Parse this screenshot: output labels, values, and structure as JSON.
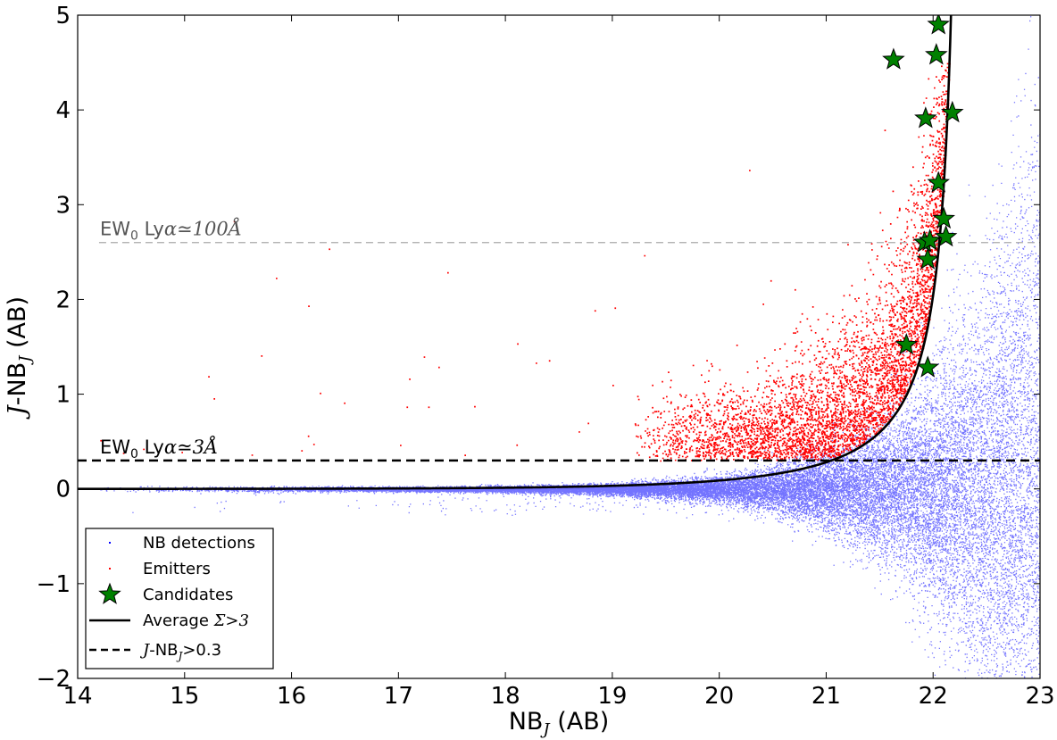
{
  "chart_data": {
    "type": "scatter",
    "xlabel": "NB",
    "xlabel_sub": "J",
    "xlabel_suffix": " (AB)",
    "ylabel_it": "J",
    "ylabel_mid": "-NB",
    "ylabel_sub": "J",
    "ylabel_suffix": " (AB)",
    "xlim": [
      14,
      23
    ],
    "ylim": [
      -2,
      5
    ],
    "xticks": [
      "14",
      "15",
      "16",
      "17",
      "18",
      "19",
      "20",
      "21",
      "22",
      "23"
    ],
    "yticks": [
      "5",
      "4",
      "3",
      "2",
      "1",
      "0",
      "−1",
      "−2"
    ],
    "ytick_values": [
      5,
      4,
      3,
      2,
      1,
      0,
      -1,
      -2
    ],
    "grid": false,
    "legend_position": "bottom-left",
    "colors": {
      "detections": "#0000ff",
      "emitters": "#ff0000",
      "candidates": "#008000",
      "curve": "#000000",
      "cut": "#000000",
      "ew100_line": "#aaaaaa",
      "ew100_text": "#555555"
    },
    "annotations": [
      {
        "text_pre": "EW",
        "sub": "0",
        "mid": " Ly",
        "sym": "α≃100Å",
        "y": 2.6,
        "color": "#555555"
      },
      {
        "text_pre": "EW",
        "sub": "0",
        "mid": " Ly",
        "sym": "α≃3Å",
        "y": 0.3,
        "color": "#000000"
      }
    ],
    "series": [
      {
        "name": "NB detections",
        "kind": "dots",
        "description_only": false
      },
      {
        "name": "Emitters",
        "kind": "dots"
      },
      {
        "name": "Candidates",
        "kind": "stars",
        "points": [
          [
            22.05,
            4.9
          ],
          [
            21.63,
            4.53
          ],
          [
            22.03,
            4.58
          ],
          [
            21.93,
            3.91
          ],
          [
            22.18,
            3.97
          ],
          [
            22.05,
            3.23
          ],
          [
            22.1,
            2.85
          ],
          [
            21.92,
            2.6
          ],
          [
            22.12,
            2.66
          ],
          [
            21.97,
            2.62
          ],
          [
            21.95,
            2.42
          ],
          [
            21.75,
            1.52
          ],
          [
            21.95,
            1.28
          ]
        ]
      },
      {
        "name": "Average",
        "name_sym": "Σ>3",
        "kind": "curve",
        "asymptote": 22.3,
        "scale": 0.65
      },
      {
        "name_it": "J",
        "name": "-NB",
        "name_sub": "J",
        "name_suffix": ">0.3",
        "kind": "hline",
        "y": 0.3
      }
    ],
    "ew100_y": 2.6
  }
}
